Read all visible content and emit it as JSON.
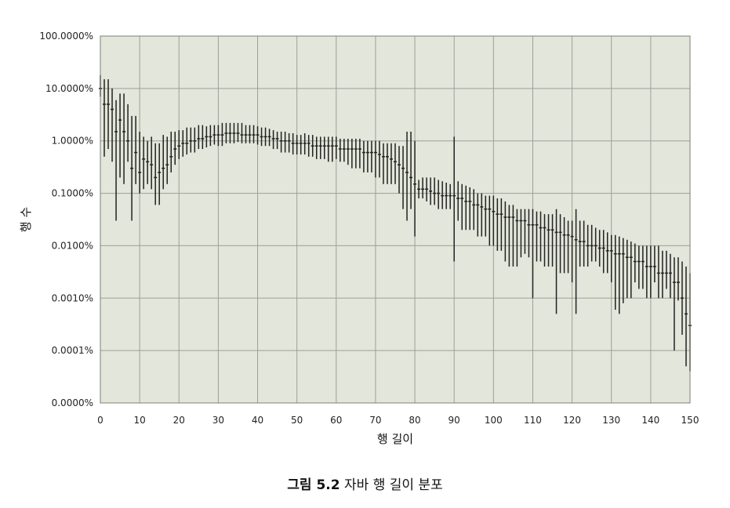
{
  "chart_data": {
    "type": "scatter",
    "title": "",
    "xlabel": "행 길이",
    "ylabel": "행 수",
    "x_range": [
      0,
      150
    ],
    "x_ticks": [
      0,
      10,
      20,
      30,
      40,
      50,
      60,
      70,
      80,
      90,
      100,
      110,
      120,
      130,
      140,
      150
    ],
    "y_scale": "log",
    "y_tick_labels": [
      "100.0000%",
      "10.0000%",
      "1.0000%",
      "0.1000%",
      "0.0100%",
      "0.0010%",
      "0.0001%",
      "0.0000%"
    ],
    "y_tick_values": [
      100,
      10,
      1,
      0.1,
      0.01,
      0.001,
      0.0001,
      1e-05
    ],
    "grid": true,
    "legend": "none",
    "plot_background": "#e3e6da",
    "grid_color": "#9da097",
    "mark_color": "#222222",
    "marks": "vertical error bars (min-max range) with a center tick per row length",
    "series": [
      {
        "x": [
          0,
          1,
          2,
          3,
          4,
          5,
          6,
          7,
          8,
          9,
          10,
          11,
          12,
          13,
          14,
          15,
          16,
          17,
          18,
          19,
          20,
          21,
          22,
          23,
          24,
          25,
          26,
          27,
          28,
          29,
          30,
          31,
          32,
          33,
          34,
          35,
          36,
          37,
          38,
          39,
          40,
          41,
          42,
          43,
          44,
          45,
          46,
          47,
          48,
          49,
          50,
          51,
          52,
          53,
          54,
          55,
          56,
          57,
          58,
          59,
          60,
          61,
          62,
          63,
          64,
          65,
          66,
          67,
          68,
          69,
          70,
          71,
          72,
          73,
          74,
          75,
          76,
          77,
          78,
          79,
          80,
          81,
          82,
          83,
          84,
          85,
          86,
          87,
          88,
          89,
          90,
          91,
          92,
          93,
          94,
          95,
          96,
          97,
          98,
          99,
          100,
          101,
          102,
          103,
          104,
          105,
          106,
          107,
          108,
          109,
          110,
          111,
          112,
          113,
          114,
          115,
          116,
          117,
          118,
          119,
          120,
          121,
          122,
          123,
          124,
          125,
          126,
          127,
          128,
          129,
          130,
          131,
          132,
          133,
          134,
          135,
          136,
          137,
          138,
          139,
          140,
          141,
          142,
          143,
          144,
          145,
          146,
          147,
          148,
          149,
          150
        ],
        "values": [
          10,
          5,
          5,
          4,
          1.5,
          2.5,
          1.5,
          1,
          0.3,
          0.6,
          0.25,
          0.45,
          0.4,
          0.35,
          0.2,
          0.25,
          0.3,
          0.35,
          0.5,
          0.7,
          0.8,
          0.9,
          0.9,
          1,
          1,
          1.1,
          1.1,
          1.2,
          1.2,
          1.3,
          1.3,
          1.3,
          1.4,
          1.4,
          1.4,
          1.4,
          1.3,
          1.3,
          1.3,
          1.3,
          1.3,
          1.2,
          1.2,
          1.2,
          1.1,
          1.1,
          1,
          1,
          1,
          0.9,
          0.9,
          0.9,
          0.9,
          0.9,
          0.8,
          0.8,
          0.8,
          0.8,
          0.8,
          0.8,
          0.8,
          0.7,
          0.7,
          0.7,
          0.7,
          0.7,
          0.7,
          0.6,
          0.6,
          0.6,
          0.6,
          0.55,
          0.5,
          0.5,
          0.45,
          0.4,
          0.35,
          0.3,
          0.25,
          0.2,
          0.15,
          0.12,
          0.12,
          0.12,
          0.11,
          0.1,
          0.1,
          0.09,
          0.09,
          0.09,
          0.09,
          0.08,
          0.08,
          0.07,
          0.07,
          0.06,
          0.06,
          0.055,
          0.05,
          0.05,
          0.045,
          0.04,
          0.04,
          0.035,
          0.035,
          0.035,
          0.03,
          0.03,
          0.03,
          0.025,
          0.025,
          0.025,
          0.022,
          0.022,
          0.02,
          0.02,
          0.018,
          0.018,
          0.016,
          0.016,
          0.015,
          0.013,
          0.012,
          0.012,
          0.01,
          0.01,
          0.01,
          0.009,
          0.009,
          0.008,
          0.008,
          0.007,
          0.007,
          0.007,
          0.006,
          0.006,
          0.005,
          0.005,
          0.005,
          0.004,
          0.004,
          0.004,
          0.003,
          0.003,
          0.003,
          0.003,
          0.002,
          0.002,
          0.001,
          0.0005,
          0.0003
        ],
        "low": [
          7,
          0.5,
          0.7,
          0.4,
          0.03,
          0.2,
          0.15,
          0.4,
          0.03,
          0.15,
          0.1,
          0.12,
          0.15,
          0.12,
          0.06,
          0.06,
          0.12,
          0.15,
          0.25,
          0.35,
          0.45,
          0.5,
          0.55,
          0.6,
          0.6,
          0.7,
          0.7,
          0.75,
          0.8,
          0.85,
          0.8,
          0.8,
          0.9,
          0.9,
          0.9,
          0.95,
          0.9,
          0.9,
          0.9,
          0.9,
          0.85,
          0.8,
          0.8,
          0.8,
          0.7,
          0.7,
          0.6,
          0.6,
          0.6,
          0.55,
          0.55,
          0.55,
          0.55,
          0.5,
          0.5,
          0.45,
          0.45,
          0.45,
          0.4,
          0.4,
          0.45,
          0.4,
          0.4,
          0.35,
          0.3,
          0.3,
          0.3,
          0.25,
          0.25,
          0.25,
          0.2,
          0.2,
          0.15,
          0.15,
          0.15,
          0.15,
          0.1,
          0.05,
          0.03,
          0.05,
          0.015,
          0.08,
          0.08,
          0.07,
          0.06,
          0.06,
          0.05,
          0.05,
          0.05,
          0.05,
          0.005,
          0.03,
          0.02,
          0.02,
          0.02,
          0.02,
          0.015,
          0.015,
          0.015,
          0.01,
          0.01,
          0.008,
          0.008,
          0.005,
          0.004,
          0.004,
          0.004,
          0.006,
          0.007,
          0.006,
          0.001,
          0.005,
          0.005,
          0.004,
          0.004,
          0.004,
          0.0005,
          0.003,
          0.003,
          0.003,
          0.002,
          0.0005,
          0.004,
          0.004,
          0.004,
          0.005,
          0.005,
          0.004,
          0.003,
          0.003,
          0.002,
          0.0006,
          0.0005,
          0.0008,
          0.001,
          0.001,
          0.002,
          0.0015,
          0.0015,
          0.001,
          0.001,
          0.002,
          0.001,
          0.001,
          0.0015,
          0.001,
          0.0001,
          0.0009,
          0.0002,
          5e-05,
          4e-05
        ],
        "high": [
          18,
          15,
          15,
          10,
          6,
          8,
          8,
          5,
          3,
          3,
          1.5,
          1.2,
          1,
          1.2,
          0.9,
          0.9,
          1.3,
          1.2,
          1.5,
          1.5,
          1.6,
          1.6,
          1.8,
          1.8,
          1.8,
          2,
          2,
          1.9,
          2,
          2,
          2,
          2.2,
          2.2,
          2.2,
          2.2,
          2.2,
          2.2,
          2,
          2,
          2,
          1.9,
          1.8,
          1.8,
          1.7,
          1.6,
          1.5,
          1.5,
          1.5,
          1.4,
          1.4,
          1.3,
          1.3,
          1.4,
          1.3,
          1.3,
          1.2,
          1.2,
          1.2,
          1.2,
          1.2,
          1.2,
          1.1,
          1.1,
          1.1,
          1.1,
          1.1,
          1.1,
          1,
          1,
          1,
          1,
          1,
          0.9,
          0.9,
          0.9,
          0.9,
          0.8,
          0.8,
          1.5,
          1.5,
          1,
          0.18,
          0.2,
          0.2,
          0.2,
          0.2,
          0.18,
          0.17,
          0.16,
          0.15,
          1.2,
          0.17,
          0.15,
          0.14,
          0.13,
          0.12,
          0.1,
          0.1,
          0.09,
          0.09,
          0.09,
          0.08,
          0.08,
          0.07,
          0.06,
          0.06,
          0.05,
          0.05,
          0.05,
          0.05,
          0.05,
          0.045,
          0.045,
          0.04,
          0.04,
          0.04,
          0.05,
          0.04,
          0.035,
          0.03,
          0.03,
          0.05,
          0.03,
          0.03,
          0.025,
          0.025,
          0.022,
          0.02,
          0.02,
          0.018,
          0.016,
          0.016,
          0.015,
          0.014,
          0.013,
          0.012,
          0.011,
          0.01,
          0.01,
          0.01,
          0.01,
          0.01,
          0.01,
          0.008,
          0.008,
          0.007,
          0.006,
          0.006,
          0.005,
          0.004,
          0.003
        ]
      }
    ]
  },
  "caption": {
    "prefix": "그림 5.2",
    "text": "자바 행 길이 분포"
  }
}
